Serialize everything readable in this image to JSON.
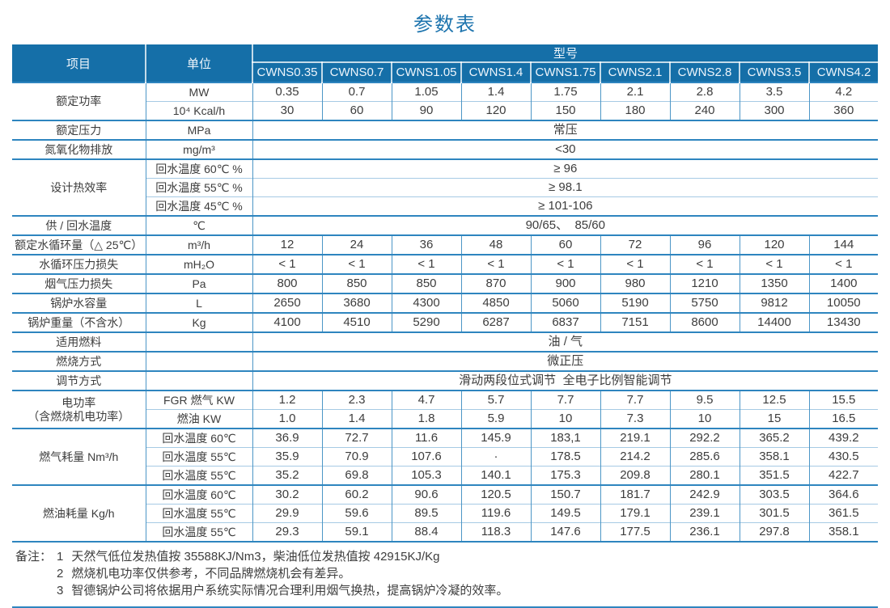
{
  "title": "参数表",
  "colors": {
    "header_bg": "#156fa8",
    "title_text": "#1d74ae",
    "grid_major": "#2e85bf",
    "grid_minor": "#a6cae4",
    "grid_vertical": "#4c96c6",
    "body_text": "#3d3d3d",
    "header_text": "#eef5fb"
  },
  "table": {
    "header": {
      "item_label": "项目",
      "unit_label": "单位",
      "model_label": "型号",
      "models": [
        "CWNS0.35",
        "CWNS0.7",
        "CWNS1.05",
        "CWNS1.4",
        "CWNS1.75",
        "CWNS2.1",
        "CWNS2.8",
        "CWNS3.5",
        "CWNS4.2"
      ]
    },
    "groups": [
      {
        "label_lines": [
          "额定功率"
        ],
        "rows": [
          {
            "unit": "MW",
            "values": [
              "0.35",
              "0.7",
              "1.05",
              "1.4",
              "1.75",
              "2.1",
              "2.8",
              "3.5",
              "4.2"
            ]
          },
          {
            "unit": "10⁴ Kcal/h",
            "values": [
              "30",
              "60",
              "90",
              "120",
              "150",
              "180",
              "240",
              "300",
              "360"
            ]
          }
        ]
      },
      {
        "label_lines": [
          "额定压力"
        ],
        "rows": [
          {
            "unit": "MPa",
            "span": "常压"
          }
        ]
      },
      {
        "label_lines": [
          "氮氧化物排放"
        ],
        "rows": [
          {
            "unit": "mg/m³",
            "span": "<30"
          }
        ]
      },
      {
        "label_lines": [
          "设计热效率"
        ],
        "rows": [
          {
            "unit": "回水温度 60℃ %",
            "span": "≥ 96"
          },
          {
            "unit": "回水温度 55℃ %",
            "span": "≥ 98.1"
          },
          {
            "unit": "回水温度 45℃ %",
            "span": "≥ 101-106"
          }
        ]
      },
      {
        "label_lines": [
          "供 / 回水温度"
        ],
        "rows": [
          {
            "unit": "℃",
            "span": "90/65、  85/60"
          }
        ]
      },
      {
        "label_lines": [
          "额定水循环量（△ 25℃）"
        ],
        "rows": [
          {
            "unit": "m³/h",
            "values": [
              "12",
              "24",
              "36",
              "48",
              "60",
              "72",
              "96",
              "120",
              "144"
            ]
          }
        ]
      },
      {
        "label_lines": [
          "水循环压力损失"
        ],
        "rows": [
          {
            "unit": "mH₂O",
            "values": [
              "< 1",
              "< 1",
              "< 1",
              "< 1",
              "< 1",
              "< 1",
              "< 1",
              "< 1",
              "< 1"
            ]
          }
        ]
      },
      {
        "label_lines": [
          "烟气压力损失"
        ],
        "rows": [
          {
            "unit": "Pa",
            "values": [
              "800",
              "850",
              "850",
              "870",
              "900",
              "980",
              "1210",
              "1350",
              "1400"
            ]
          }
        ]
      },
      {
        "label_lines": [
          "锅炉水容量"
        ],
        "rows": [
          {
            "unit": "L",
            "values": [
              "2650",
              "3680",
              "4300",
              "4850",
              "5060",
              "5190",
              "5750",
              "9812",
              "10050"
            ]
          }
        ]
      },
      {
        "label_lines": [
          "锅炉重量（不含水）"
        ],
        "rows": [
          {
            "unit": "Kg",
            "values": [
              "4100",
              "4510",
              "5290",
              "6287",
              "6837",
              "7151",
              "8600",
              "14400",
              "13430"
            ]
          }
        ]
      },
      {
        "label_lines": [
          "适用燃料"
        ],
        "rows": [
          {
            "unit": "",
            "span": "油 / 气"
          }
        ]
      },
      {
        "label_lines": [
          "燃烧方式"
        ],
        "rows": [
          {
            "unit": "",
            "span": "微正压"
          }
        ]
      },
      {
        "label_lines": [
          "调节方式"
        ],
        "rows": [
          {
            "unit": "",
            "span": "滑动两段位式调节  全电子比例智能调节"
          }
        ]
      },
      {
        "label_lines": [
          "电功率",
          "（含燃烧机电功率）"
        ],
        "rows": [
          {
            "unit": "FGR 燃气 KW",
            "values": [
              "1.2",
              "2.3",
              "4.7",
              "5.7",
              "7.7",
              "7.7",
              "9.5",
              "12.5",
              "15.5"
            ]
          },
          {
            "unit": "燃油 KW",
            "values": [
              "1.0",
              "1.4",
              "1.8",
              "5.9",
              "10",
              "7.3",
              "10",
              "15",
              "16.5"
            ]
          }
        ]
      },
      {
        "label_lines": [
          "燃气耗量 Nm³/h"
        ],
        "rows": [
          {
            "unit": "回水温度 60℃",
            "values": [
              "36.9",
              "72.7",
              "11.6",
              "145.9",
              "183,1",
              "219.1",
              "292.2",
              "365.2",
              "439.2"
            ]
          },
          {
            "unit": "回水温度 55℃",
            "values": [
              "35.9",
              "70.9",
              "107.6",
              "·",
              "178.5",
              "214.2",
              "285.6",
              "358.1",
              "430.5"
            ]
          },
          {
            "unit": "回水温度 55℃",
            "values": [
              "35.2",
              "69.8",
              "105.3",
              "140.1",
              "175.3",
              "209.8",
              "280.1",
              "351.5",
              "422.7"
            ]
          }
        ]
      },
      {
        "label_lines": [
          "燃油耗量  Kg/h"
        ],
        "rows": [
          {
            "unit": "回水温度 60℃",
            "values": [
              "30.2",
              "60.2",
              "90.6",
              "120.5",
              "150.7",
              "181.7",
              "242.9",
              "303.5",
              "364.6"
            ]
          },
          {
            "unit": "回水温度 55℃",
            "values": [
              "29.9",
              "59.6",
              "89.5",
              "119.6",
              "149.5",
              "179.1",
              "239.1",
              "301.5",
              "361.5"
            ]
          },
          {
            "unit": "回水温度 55℃",
            "values": [
              "29.3",
              "59.1",
              "88.4",
              "118.3",
              "147.6",
              "177.5",
              "236.1",
              "297.8",
              "358.1"
            ]
          }
        ]
      }
    ]
  },
  "notes": {
    "prefix": "备注：",
    "items": [
      {
        "num": "1",
        "text": "天然气低位发热值按 35588KJ/Nm3，柴油低位发热值按 42915KJ/Kg"
      },
      {
        "num": "2",
        "text": "燃烧机电功率仅供参考，不同品牌燃烧机会有差异。"
      },
      {
        "num": "3",
        "text": "智德锅炉公司将依据用户系统实际情况合理利用烟气换热，提高锅炉冷凝的效率。"
      }
    ]
  }
}
